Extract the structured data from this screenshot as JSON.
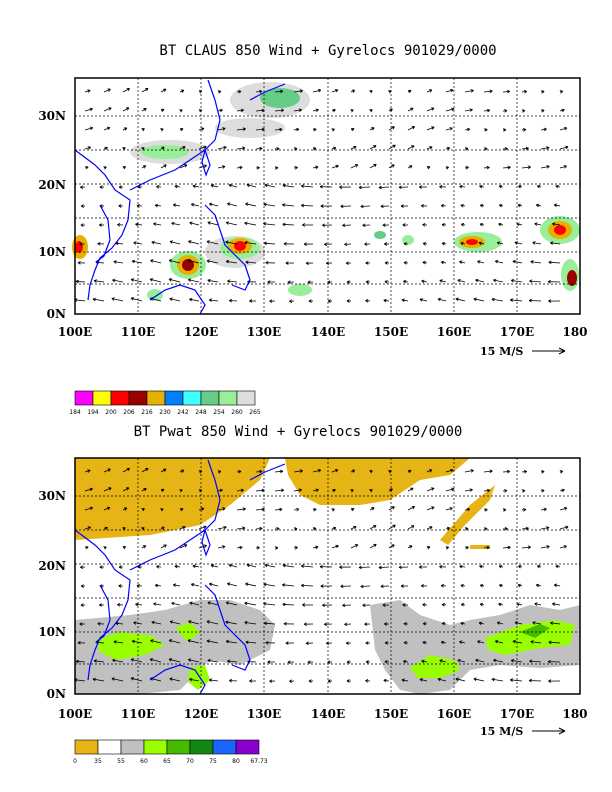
{
  "top_panel": {
    "title": "BT CLAUS 850 Wind + Gyrelocs 901029/0000",
    "y_ticks": [
      "30N",
      "20N",
      "10N",
      "0N"
    ],
    "x_ticks": [
      "100E",
      "110E",
      "120E",
      "130E",
      "140E",
      "150E",
      "160E",
      "170E",
      "180"
    ],
    "ref_vector_label": "15 M/S",
    "legend": {
      "labels": [
        "184",
        "194",
        "200",
        "206",
        "216",
        "230",
        "242",
        "248",
        "254",
        "260",
        "265"
      ],
      "colors": [
        "#ff00ff",
        "#ffff00",
        "#ff0000",
        "#990000",
        "#e6b000",
        "#0080ff",
        "#40ffff",
        "#66cc88",
        "#99ee99",
        "#dddddd"
      ]
    }
  },
  "bottom_panel": {
    "title": "BT Pwat 850 Wind + Gyrelocs 901029/0000",
    "y_ticks": [
      "30N",
      "20N",
      "10N",
      "0N"
    ],
    "x_ticks": [
      "100E",
      "110E",
      "120E",
      "130E",
      "140E",
      "150E",
      "160E",
      "170E",
      "180"
    ],
    "ref_vector_label": "15 M/S",
    "legend": {
      "labels": [
        "0",
        "35",
        "55",
        "60",
        "65",
        "70",
        "75",
        "80",
        "67.73"
      ],
      "colors": [
        "#e6b414",
        "#ffffff",
        "#c0c0c0",
        "#99ff00",
        "#44bb00",
        "#118811",
        "#1a66ff",
        "#8800cc"
      ]
    }
  },
  "colors": {
    "coast": "#0000ff",
    "grid": "#000000",
    "vector": "#000000"
  }
}
